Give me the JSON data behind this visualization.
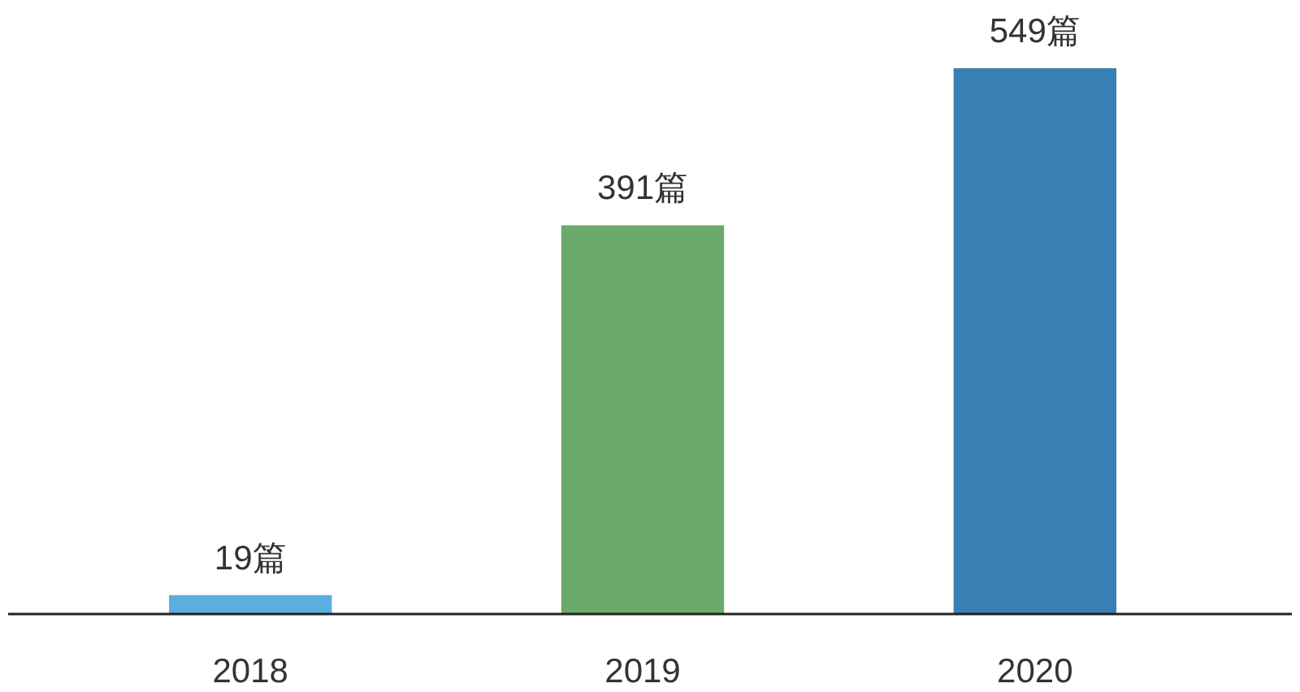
{
  "chart_data": {
    "type": "bar",
    "categories": [
      "2018",
      "2019",
      "2020"
    ],
    "values": [
      19,
      391,
      549
    ],
    "colors": [
      "#5aaee0",
      "#6aaa6a",
      "#3a7fb3"
    ],
    "value_labels": [
      "19篇",
      "391篇",
      "549篇"
    ]
  }
}
